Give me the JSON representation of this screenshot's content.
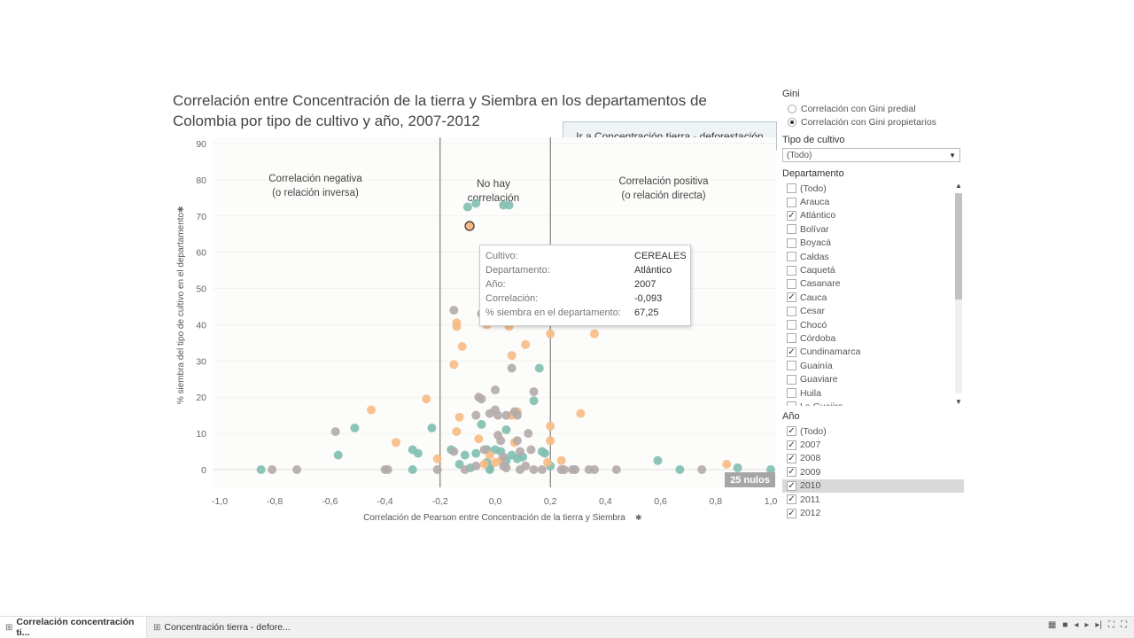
{
  "header": {
    "title": "Correlación entre Concentración de la tierra y Siembra en los departamentos de Colombia por tipo de cultivo y año, 2007-2012",
    "nav_button": "Ir a Concentración tierra - deforestación"
  },
  "chart_data": {
    "type": "scatter",
    "xlabel": "Correlación de Pearson entre Concentración de la tierra y Siembra",
    "ylabel": "% siembra del tipo de cultivo en el departamento",
    "xlim": [
      -1.0,
      1.0
    ],
    "ylim": [
      0,
      90
    ],
    "x_ticks": [
      "-1,0",
      "-0,8",
      "-0,6",
      "-0,4",
      "-0,2",
      "0,0",
      "0,2",
      "0,4",
      "0,6",
      "0,8",
      "1,0"
    ],
    "y_ticks": [
      "0",
      "10",
      "20",
      "30",
      "40",
      "50",
      "60",
      "70",
      "80",
      "90"
    ],
    "grid": true,
    "reference_lines_x": [
      -0.2,
      0.2
    ],
    "region_labels": {
      "negative": "Correlación negativa\n(o relación inversa)",
      "none": "No hay\ncorrelación",
      "positive": "Correlación positiva\n(o relación directa)"
    },
    "colors": {
      "teal": "#7fbfb0",
      "orange": "#f6bb84",
      "gray": "#b4aaaa"
    },
    "series": [
      {
        "color": "teal",
        "points": [
          [
            -0.85,
            0
          ],
          [
            -0.57,
            4
          ],
          [
            -0.51,
            11.5
          ],
          [
            -0.3,
            5.5
          ],
          [
            -0.28,
            4.5
          ],
          [
            -0.23,
            11.5
          ],
          [
            -0.3,
            0
          ],
          [
            -0.16,
            5.5
          ],
          [
            -0.13,
            1.5
          ],
          [
            -0.11,
            4
          ],
          [
            -0.09,
            0.5
          ],
          [
            -0.07,
            4.5
          ],
          [
            -0.05,
            12.5
          ],
          [
            -0.03,
            5.5
          ],
          [
            -0.03,
            2
          ],
          [
            -0.02,
            0
          ],
          [
            0,
            5.5
          ],
          [
            0.02,
            5
          ],
          [
            0.04,
            2.5
          ],
          [
            0.04,
            11
          ],
          [
            0.06,
            4
          ],
          [
            0.08,
            3
          ],
          [
            0.1,
            3.5
          ],
          [
            0.14,
            19
          ],
          [
            0.16,
            28
          ],
          [
            0.17,
            5
          ],
          [
            0.18,
            4.5
          ],
          [
            0.2,
            1
          ],
          [
            -0.1,
            72.5
          ],
          [
            -0.07,
            73.5
          ],
          [
            0.03,
            73
          ],
          [
            0.05,
            73
          ],
          [
            0.59,
            2.5
          ],
          [
            0.67,
            0
          ],
          [
            0.88,
            0.5
          ],
          [
            1.0,
            0
          ],
          [
            -0.02,
            0.5
          ]
        ]
      },
      {
        "color": "orange",
        "points": [
          [
            -0.45,
            16.5
          ],
          [
            -0.36,
            7.5
          ],
          [
            -0.21,
            3
          ],
          [
            -0.25,
            19.5
          ],
          [
            -0.15,
            29
          ],
          [
            -0.14,
            39.5
          ],
          [
            -0.14,
            40.5
          ],
          [
            -0.12,
            34
          ],
          [
            -0.14,
            10.5
          ],
          [
            -0.13,
            14.5
          ],
          [
            -0.06,
            8.5
          ],
          [
            -0.04,
            1.5
          ],
          [
            -0.02,
            4
          ],
          [
            0.02,
            2.5
          ],
          [
            0.05,
            39.5
          ],
          [
            -0.03,
            40
          ],
          [
            0.06,
            15
          ],
          [
            0.06,
            31.5
          ],
          [
            0.08,
            16
          ],
          [
            0.07,
            7.5
          ],
          [
            0.11,
            34.5
          ],
          [
            0.2,
            37.5
          ],
          [
            0.2,
            12
          ],
          [
            0.2,
            8
          ],
          [
            0.19,
            2
          ],
          [
            0.24,
            2.5
          ],
          [
            0.31,
            15.5
          ],
          [
            0.36,
            37.5
          ],
          [
            0.84,
            1.5
          ],
          [
            0,
            2
          ]
        ]
      },
      {
        "color": "gray",
        "points": [
          [
            -0.81,
            0
          ],
          [
            -0.72,
            0
          ],
          [
            -0.58,
            10.5
          ],
          [
            -0.4,
            0
          ],
          [
            -0.39,
            0
          ],
          [
            -0.21,
            0
          ],
          [
            -0.15,
            44
          ],
          [
            -0.15,
            5
          ],
          [
            -0.11,
            0
          ],
          [
            -0.07,
            15
          ],
          [
            -0.06,
            20
          ],
          [
            -0.05,
            19.5
          ],
          [
            -0.05,
            43
          ],
          [
            -0.04,
            5.5
          ],
          [
            -0.02,
            15.5
          ],
          [
            0,
            22
          ],
          [
            0,
            16.5
          ],
          [
            0.01,
            15
          ],
          [
            0.01,
            9.5
          ],
          [
            0.02,
            8
          ],
          [
            0.03,
            3.5
          ],
          [
            0.03,
            1
          ],
          [
            0.04,
            15
          ],
          [
            0.06,
            28
          ],
          [
            0.07,
            16
          ],
          [
            0.08,
            15
          ],
          [
            0.08,
            8
          ],
          [
            0.09,
            5
          ],
          [
            0.11,
            1
          ],
          [
            0.12,
            10
          ],
          [
            0.13,
            5.5
          ],
          [
            0.14,
            21.5
          ],
          [
            0.14,
            0
          ],
          [
            0.09,
            0
          ],
          [
            0.17,
            0
          ],
          [
            0.24,
            0
          ],
          [
            0.25,
            0
          ],
          [
            0.28,
            0
          ],
          [
            0.29,
            0
          ],
          [
            0.34,
            0
          ],
          [
            0.36,
            0
          ],
          [
            0.44,
            0
          ],
          [
            0.75,
            0
          ],
          [
            0.04,
            0.5
          ],
          [
            -0.07,
            1
          ]
        ]
      }
    ],
    "highlighted_point": {
      "x": -0.093,
      "y": 67.25,
      "color": "orange"
    },
    "nulls_badge": "25 nulos"
  },
  "tooltip": {
    "rows": [
      {
        "k": "Cultivo:",
        "v": "CEREALES"
      },
      {
        "k": "Departamento:",
        "v": "Atlántico"
      },
      {
        "k": "Año:",
        "v": "2007"
      },
      {
        "k": "Correlación:",
        "v": "-0,093"
      },
      {
        "k": "% siembra en el departamento:",
        "v": "67,25"
      }
    ]
  },
  "sidepanel": {
    "gini": {
      "title": "Gini",
      "options": [
        {
          "label": "Correlación con Gini predial",
          "selected": false
        },
        {
          "label": "Correlación con Gini propietarios",
          "selected": true
        }
      ]
    },
    "cultivo": {
      "title": "Tipo de cultivo",
      "value": "(Todo)"
    },
    "departamento": {
      "title": "Departamento",
      "items": [
        {
          "label": "(Todo)",
          "checked": false
        },
        {
          "label": "Arauca",
          "checked": false
        },
        {
          "label": "Atlántico",
          "checked": true
        },
        {
          "label": "Bolívar",
          "checked": false
        },
        {
          "label": "Boyacá",
          "checked": false
        },
        {
          "label": "Caldas",
          "checked": false
        },
        {
          "label": "Caquetá",
          "checked": false
        },
        {
          "label": "Casanare",
          "checked": false
        },
        {
          "label": "Cauca",
          "checked": true
        },
        {
          "label": "Cesar",
          "checked": false
        },
        {
          "label": "Chocó",
          "checked": false
        },
        {
          "label": "Córdoba",
          "checked": false
        },
        {
          "label": "Cundinamarca",
          "checked": true
        },
        {
          "label": "Guainía",
          "checked": false
        },
        {
          "label": "Guaviare",
          "checked": false
        },
        {
          "label": "Huila",
          "checked": false
        },
        {
          "label": "La Guajira",
          "checked": false
        }
      ]
    },
    "anio": {
      "title": "Año",
      "items": [
        {
          "label": "(Todo)",
          "checked": true
        },
        {
          "label": "2007",
          "checked": true
        },
        {
          "label": "2008",
          "checked": true
        },
        {
          "label": "2009",
          "checked": true
        },
        {
          "label": "2010",
          "checked": true,
          "highlight": true
        },
        {
          "label": "2011",
          "checked": true
        },
        {
          "label": "2012",
          "checked": true
        }
      ]
    }
  },
  "tabs": [
    {
      "label": "Correlación concentración ti...",
      "active": true
    },
    {
      "label": "Concentración tierra - defore...",
      "active": false
    }
  ]
}
